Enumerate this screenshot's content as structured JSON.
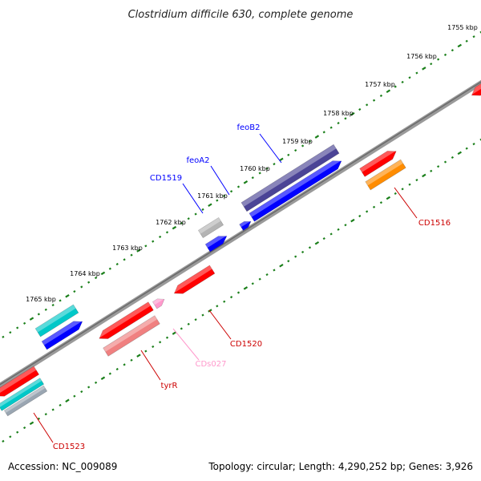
{
  "title": "Clostridium difficile 630, complete genome",
  "footer": {
    "accession": "Accession: NC_009089",
    "stats": "Topology: circular; Length: 4,290,252 bp; Genes: 3,926"
  },
  "colors": {
    "background": "#ffffff",
    "backbone": "#808080",
    "ruler_tick": "#1a7f1a",
    "gene_red": "#ff0000",
    "gene_blue": "#0000ff",
    "gene_navy": "#4b4496",
    "gene_cyan": "#00c8c8",
    "gene_grey": "#b4b4b4",
    "gene_pink": "#f08080",
    "gene_lightpink": "#ff99cc",
    "gene_orange": "#ff8c00"
  },
  "ruler": {
    "ticks": [
      "1755 kbp",
      "1756 kbp",
      "1757 kbp",
      "1758 kbp",
      "1759 kbp",
      "1760 kbp",
      "1761 kbp",
      "1762 kbp",
      "1763 kbp",
      "1764 kbp",
      "1765 kbp"
    ]
  },
  "gene_labels": [
    {
      "text": "feoB2",
      "color": "#0000ff"
    },
    {
      "text": "feoA2",
      "color": "#0000ff"
    },
    {
      "text": "CD1519",
      "color": "#0000ff"
    },
    {
      "text": "CD1516",
      "color": "#cc0000"
    },
    {
      "text": "CD1520",
      "color": "#cc0000"
    },
    {
      "text": "CDs027",
      "color": "#ff99cc"
    },
    {
      "text": "tyrR",
      "color": "#cc0000"
    },
    {
      "text": "CD1523",
      "color": "#cc0000"
    }
  ]
}
